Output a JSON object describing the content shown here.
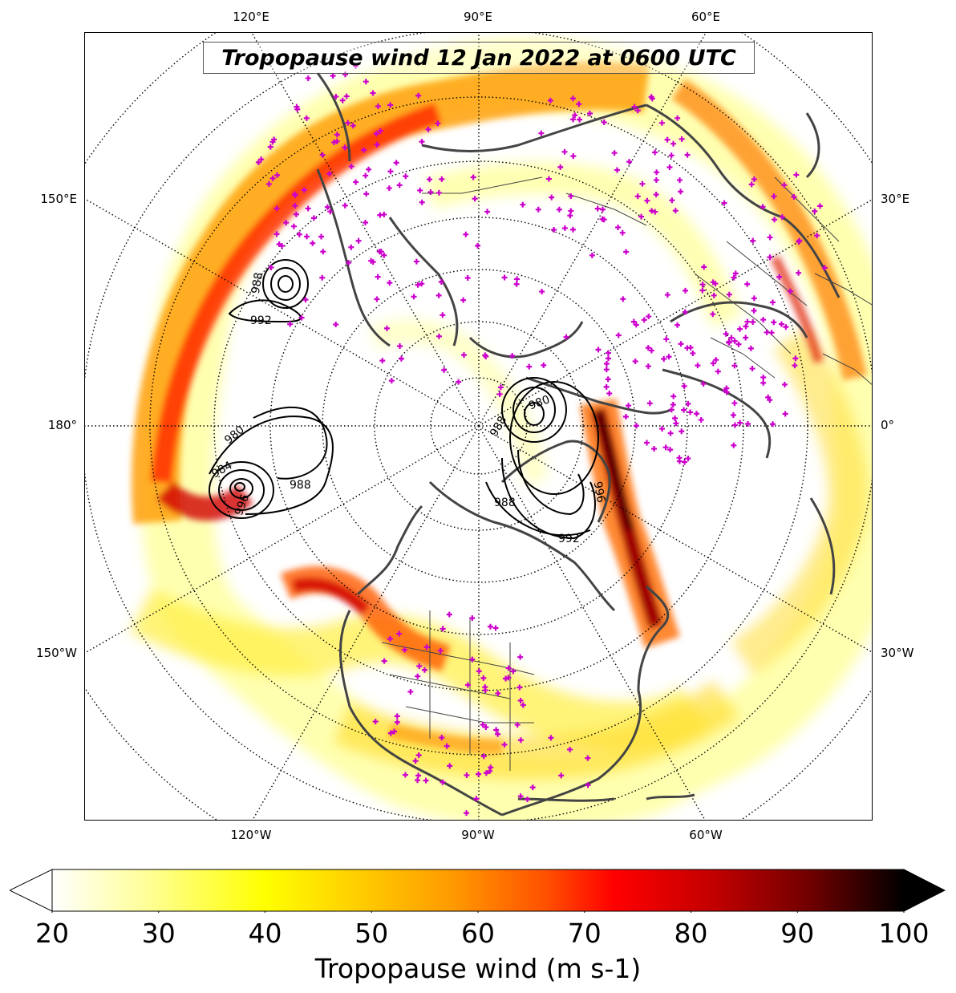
{
  "title": "Tropopause wind 12 Jan 2022 at 0600 UTC",
  "lon_labels": {
    "top": [
      "120°E",
      "90°E",
      "60°E"
    ],
    "bottom": [
      "120°W",
      "90°W",
      "60°W"
    ],
    "left": [
      "150°E",
      "180°",
      "150°W"
    ],
    "right": [
      "30°E",
      "0°",
      "30°W"
    ]
  },
  "pressure_contours": {
    "color": "#000000",
    "labels": [
      "992",
      "988",
      "980",
      "984",
      "988",
      "996",
      "992",
      "988",
      "980",
      "988",
      "996"
    ]
  },
  "colorbar": {
    "label": "Tropopause wind (m s-1)",
    "ticks": [
      "20",
      "30",
      "40",
      "50",
      "60",
      "70",
      "80",
      "90",
      "100"
    ],
    "min": 20,
    "max": 100,
    "extend": "both",
    "colormap": "hot_r",
    "stops": [
      "#ffffff",
      "#ffff99",
      "#ffff00",
      "#ffd200",
      "#ff9a00",
      "#ff5000",
      "#ff0000",
      "#c00000",
      "#700000",
      "#000000"
    ]
  },
  "station_marker_color": "#cc00cc",
  "coastline_color": "#444444",
  "projection": "north-polar-stereographic"
}
